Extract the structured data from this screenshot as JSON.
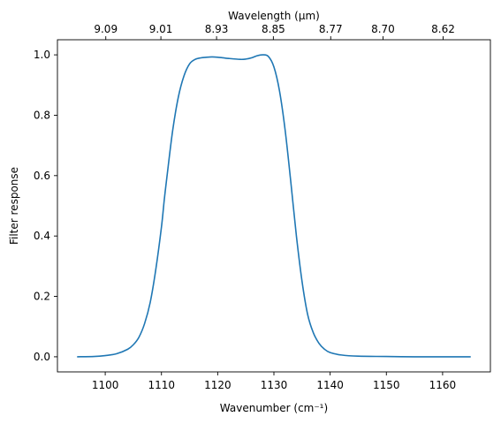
{
  "chart_data": {
    "type": "line",
    "xlabel": "Wavenumber (cm⁻¹)",
    "ylabel": "Filter response",
    "top_xlabel": "Wavelength (μm)",
    "xlim": [
      1091.5,
      1168.5
    ],
    "ylim": [
      -0.05,
      1.05
    ],
    "x_ticks": [
      1100,
      1110,
      1120,
      1130,
      1140,
      1150,
      1160
    ],
    "y_ticks": [
      0.0,
      0.2,
      0.4,
      0.6,
      0.8,
      1.0
    ],
    "top_ticks": [
      {
        "x": 1100.1,
        "label": "9.09"
      },
      {
        "x": 1109.9,
        "label": "9.01"
      },
      {
        "x": 1119.8,
        "label": "8.93"
      },
      {
        "x": 1129.9,
        "label": "8.85"
      },
      {
        "x": 1140.1,
        "label": "8.77"
      },
      {
        "x": 1149.4,
        "label": "8.70"
      },
      {
        "x": 1160.1,
        "label": "8.62"
      }
    ],
    "grid": false,
    "series": [
      {
        "color": "#1f77b4",
        "x": [
          1095,
          1098,
          1100,
          1102,
          1104,
          1105,
          1106,
          1107,
          1108,
          1109,
          1110,
          1110.5,
          1111,
          1112,
          1113,
          1114,
          1115,
          1116,
          1117,
          1118,
          1119,
          1120,
          1122,
          1124,
          1125,
          1126,
          1127,
          1128,
          1129,
          1130,
          1131,
          1132,
          1133,
          1134,
          1135,
          1136,
          1137,
          1138,
          1139,
          1140,
          1142,
          1145,
          1150,
          1155,
          1160,
          1165
        ],
        "y": [
          0.0,
          0.001,
          0.004,
          0.01,
          0.025,
          0.04,
          0.065,
          0.11,
          0.18,
          0.29,
          0.43,
          0.52,
          0.6,
          0.75,
          0.86,
          0.93,
          0.97,
          0.985,
          0.99,
          0.992,
          0.993,
          0.992,
          0.988,
          0.985,
          0.986,
          0.99,
          0.997,
          1.0,
          0.995,
          0.96,
          0.88,
          0.75,
          0.58,
          0.4,
          0.25,
          0.14,
          0.08,
          0.045,
          0.025,
          0.014,
          0.006,
          0.002,
          0.001,
          0.0,
          0.0,
          0.0
        ]
      }
    ]
  }
}
